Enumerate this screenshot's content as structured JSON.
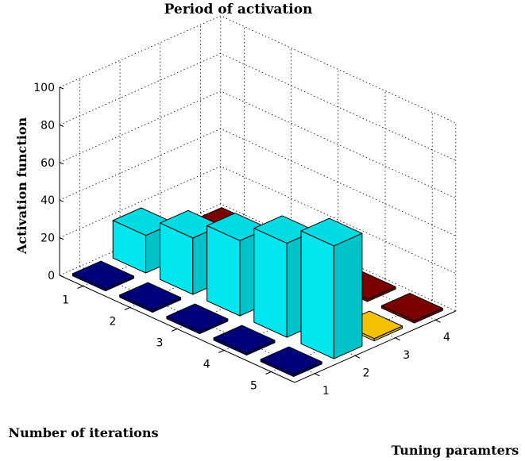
{
  "chart_data": {
    "type": "bar3d",
    "title": "Period of activation",
    "zlabel": "Activation function",
    "xlabel": "Number of iterations",
    "ylabel": "Tuning paramters",
    "zlim": [
      0,
      100
    ],
    "z_ticks": [
      "0",
      "20",
      "40",
      "60",
      "80",
      "100"
    ],
    "iterations": [
      "1",
      "2",
      "3",
      "4",
      "5"
    ],
    "tuning_params": [
      "1",
      "2",
      "3",
      "4"
    ],
    "series": [
      {
        "param": 1,
        "color": "#000080",
        "values": [
          0,
          0,
          0,
          0,
          0
        ]
      },
      {
        "param": 2,
        "color": "#00e5ee",
        "values": [
          20,
          30,
          40,
          50,
          60
        ]
      },
      {
        "param": 3,
        "color": "#ffcc00",
        "values": [
          0,
          0,
          0,
          0,
          0
        ]
      },
      {
        "param": 4,
        "color": "#800000",
        "values": [
          0,
          0,
          0,
          0,
          0
        ]
      }
    ]
  }
}
